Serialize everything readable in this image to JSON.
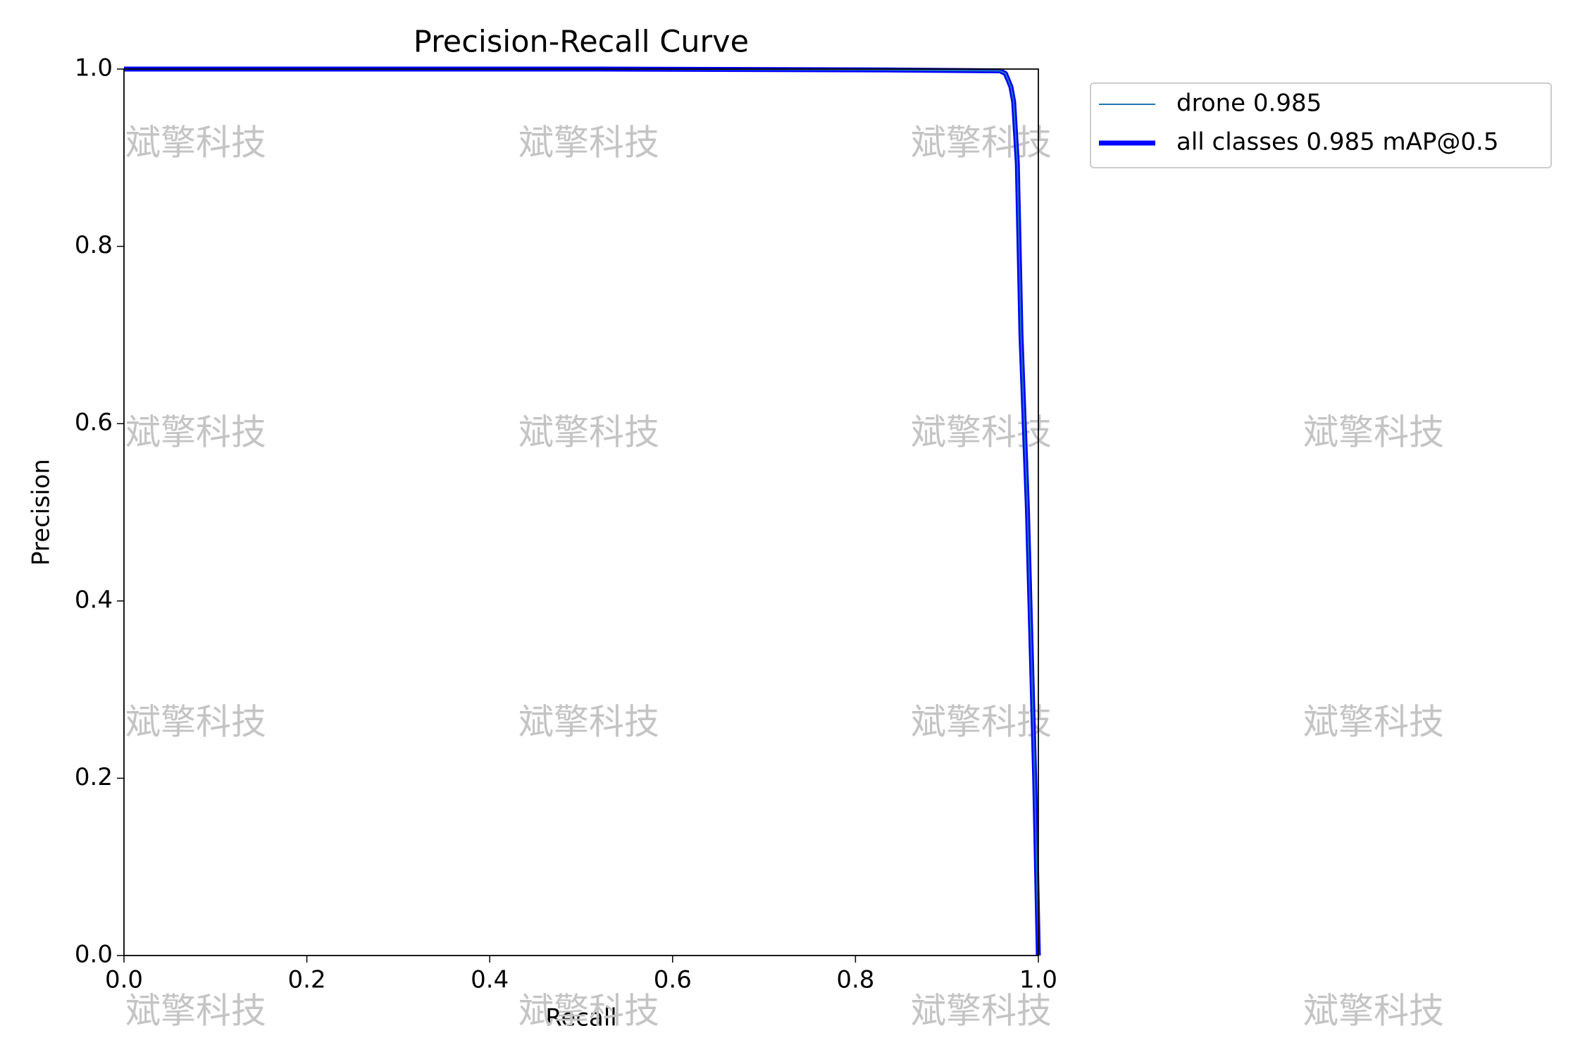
{
  "chart_data": {
    "type": "line",
    "title": "Precision-Recall Curve",
    "xlabel": "Recall",
    "ylabel": "Precision",
    "watermark": "斌擎科技",
    "series": [
      {
        "name": "drone 0.985",
        "color": "#1f77b4",
        "x": [
          0,
          0.52,
          0.835,
          0.958,
          0.964,
          0.97,
          0.973,
          0.977,
          0.981,
          0.988,
          0.996,
          1.0
        ],
        "values": [
          1.0,
          1.0,
          0.999,
          0.998,
          0.995,
          0.98,
          0.963,
          0.894,
          0.7,
          0.505,
          0.2,
          0.0
        ]
      },
      {
        "name": "all classes 0.985 mAP@0.5",
        "color": "#0000ff",
        "x": [
          0,
          0.52,
          0.835,
          0.958,
          0.964,
          0.97,
          0.973,
          0.977,
          0.981,
          0.988,
          0.996,
          1.0
        ],
        "values": [
          1.0,
          1.0,
          0.999,
          0.998,
          0.995,
          0.98,
          0.963,
          0.894,
          0.7,
          0.505,
          0.2,
          0.0
        ]
      }
    ],
    "xlim": [
      0,
      1
    ],
    "ylim": [
      0,
      1
    ],
    "xticks": [
      {
        "value": 0,
        "label": "0.0"
      },
      0.2,
      0.4,
      0.6,
      0.8,
      {
        "value": 1,
        "label": "1.0"
      }
    ],
    "yticks": [
      {
        "value": 0,
        "label": "0.0"
      },
      0.2,
      0.4,
      0.6,
      0.8,
      {
        "value": 1,
        "label": "1.0"
      }
    ],
    "legend": "outside-upper-right"
  }
}
